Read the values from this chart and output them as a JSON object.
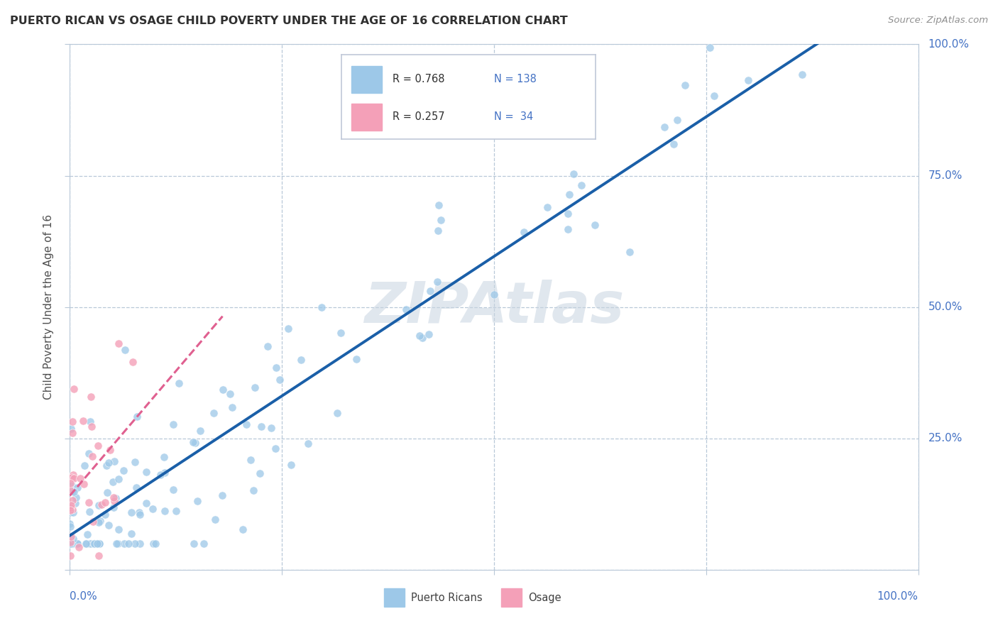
{
  "title": "PUERTO RICAN VS OSAGE CHILD POVERTY UNDER THE AGE OF 16 CORRELATION CHART",
  "source": "Source: ZipAtlas.com",
  "ylabel": "Child Poverty Under the Age of 16",
  "r_blue": 0.768,
  "n_blue": 138,
  "r_pink": 0.257,
  "n_pink": 34,
  "blue_scatter_color": "#9dc8e8",
  "pink_scatter_color": "#f4a0b8",
  "blue_line_color": "#1a5fa8",
  "pink_line_color": "#e06090",
  "watermark": "ZIPAtlas",
  "watermark_color": "#c8d4e0",
  "title_color": "#303030",
  "source_color": "#909090",
  "axis_label_color": "#4472c4",
  "ylabel_color": "#505050",
  "background_color": "#ffffff",
  "grid_color": "#b8c8d8",
  "legend_border_color": "#c0c8d8",
  "legend_blue_text_r": "R = 0.768",
  "legend_blue_text_n": "N = 138",
  "legend_pink_text_r": "R = 0.257",
  "legend_pink_text_n": "N =  34",
  "bottom_legend_blue": "Puerto Ricans",
  "bottom_legend_pink": "Osage"
}
